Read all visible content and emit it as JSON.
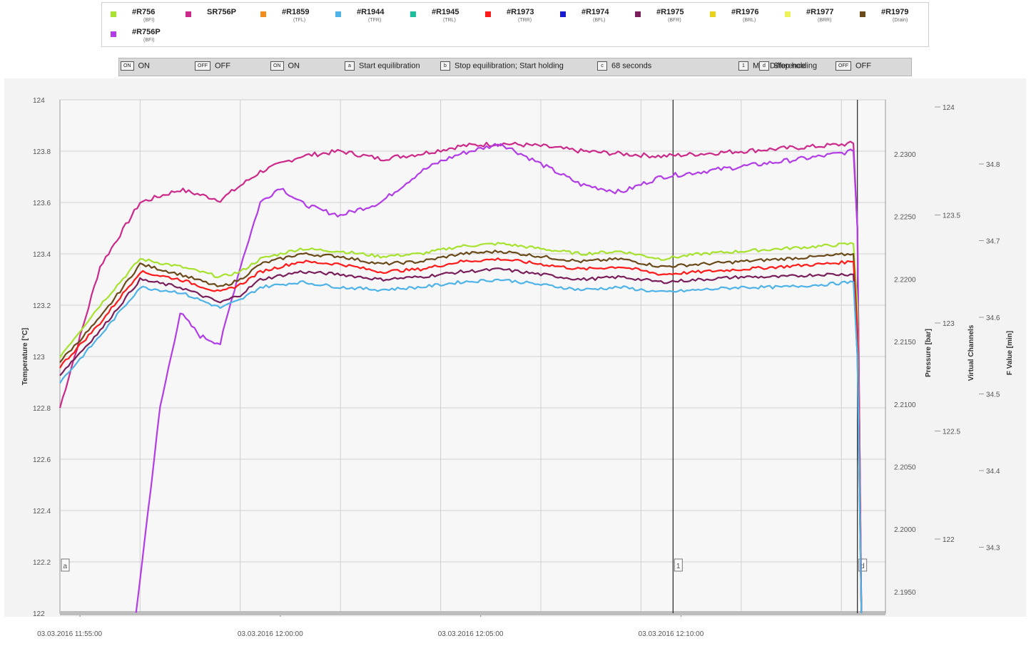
{
  "legend": [
    {
      "name": "#R756",
      "sub": "(BFI)",
      "color": "#a6e22e"
    },
    {
      "name": "SR756P",
      "sub": "",
      "color": "#cc2a8a"
    },
    {
      "name": "#R1859",
      "sub": "(TFL)",
      "color": "#f28c1c"
    },
    {
      "name": "#R1944",
      "sub": "(TFR)",
      "color": "#4fb3e8"
    },
    {
      "name": "#R1945",
      "sub": "(TRL)",
      "color": "#1bbf9a"
    },
    {
      "name": "#R1973",
      "sub": "(TRR)",
      "color": "#ff1a1a"
    },
    {
      "name": "#R1974",
      "sub": "(BFL)",
      "color": "#1a1ad6"
    },
    {
      "name": "#R1975",
      "sub": "(BFR)",
      "color": "#7a1f5c"
    },
    {
      "name": "#R1976",
      "sub": "(BRL)",
      "color": "#e8d21a"
    },
    {
      "name": "#R1977",
      "sub": "(BRR)",
      "color": "#eef25a"
    },
    {
      "name": "#R1979",
      "sub": "(Drain)",
      "color": "#6b4a1a"
    },
    {
      "name": "#R756P",
      "sub": "(BFI)",
      "color": "#b23ce6"
    }
  ],
  "status_bar": [
    {
      "icon": "ON",
      "label": "ON"
    },
    {
      "icon": "OFF",
      "label": "OFF"
    },
    {
      "icon": "ON",
      "label": "ON"
    },
    {
      "icon": "a",
      "label": "Start equilibration"
    },
    {
      "icon": "b",
      "label": "Stop equilibration; Start holding"
    },
    {
      "icon": "c",
      "label": "68 seconds"
    },
    {
      "icon": "1",
      "label": "Max Difference"
    },
    {
      "icon": "d",
      "label": "Stop holding"
    },
    {
      "icon": "OFF",
      "label": "OFF"
    }
  ],
  "chart_data": {
    "type": "line",
    "x_tick_labels": [
      "03.03.2016 11:55:00",
      "03.03.2016 12:00:00",
      "03.03.2016 12:05:00",
      "03.03.2016 12:10:00"
    ],
    "x_range_minutes": [
      -2.0,
      18.6
    ],
    "left_axis": {
      "label": "Temperature [°C]",
      "range": [
        122,
        124
      ],
      "ticks": [
        "124",
        "123.8",
        "123.6",
        "123.4",
        "123.2",
        "123",
        "122.8",
        "122.6",
        "122.4",
        "122.2",
        "122"
      ]
    },
    "pressure_axis": {
      "label": "Pressure [bar]",
      "ticks": [
        "2.2300",
        "2.2250",
        "2.2200",
        "2.2150",
        "2.2100",
        "2.2050",
        "2.2000",
        "2.1950"
      ]
    },
    "virtual_axis": {
      "label": "Virtual Channels",
      "ticks": [
        "124",
        "123.5",
        "123",
        "122.5",
        "122"
      ]
    },
    "fvalue_axis": {
      "label": "F Value [min]",
      "ticks": [
        "34.8",
        "34.7",
        "34.6",
        "34.5",
        "34.4",
        "34.3"
      ]
    },
    "markers": [
      {
        "label": "a",
        "x_minute": -2.0
      },
      {
        "label": "1",
        "x_minute": 13.3
      },
      {
        "label": "d",
        "x_minute": 17.9
      }
    ],
    "series": [
      {
        "name": "SR756P",
        "color": "#cc2a8a",
        "x": [
          -2,
          -1,
          0,
          1,
          2,
          3,
          4,
          5,
          6,
          7,
          8,
          9,
          10,
          11,
          12,
          13,
          14,
          15,
          16,
          17,
          17.8,
          17.9,
          18.0
        ],
        "y": [
          122.8,
          123.35,
          123.6,
          123.65,
          123.61,
          123.72,
          123.78,
          123.8,
          123.77,
          123.79,
          123.82,
          123.83,
          123.82,
          123.8,
          123.79,
          123.78,
          123.79,
          123.8,
          123.81,
          123.82,
          123.83,
          123.5,
          122.0
        ]
      },
      {
        "name": "#R756P",
        "color": "#b23ce6",
        "x": [
          -0.1,
          0.5,
          1,
          1.5,
          2,
          2.5,
          3,
          3.5,
          4,
          4.5,
          5,
          6,
          7,
          7.5,
          8,
          9,
          10,
          11,
          12,
          13,
          14,
          15,
          16,
          17,
          17.8,
          17.9,
          18.0
        ],
        "y": [
          122.0,
          122.8,
          123.17,
          123.08,
          123.05,
          123.35,
          123.6,
          123.66,
          123.6,
          123.57,
          123.55,
          123.6,
          123.72,
          123.76,
          123.79,
          123.83,
          123.75,
          123.67,
          123.64,
          123.7,
          123.72,
          123.74,
          123.76,
          123.78,
          123.8,
          123.5,
          122.0
        ]
      },
      {
        "name": "#R756",
        "color": "#a6e22e",
        "x": [
          -2,
          -1,
          0,
          1,
          2,
          2.5,
          3,
          4,
          5,
          6,
          7,
          8,
          9,
          10,
          11,
          12,
          13,
          14,
          15,
          16,
          17,
          17.8,
          17.9,
          18.0
        ],
        "y": [
          123.0,
          123.2,
          123.38,
          123.35,
          123.31,
          123.33,
          123.38,
          123.42,
          123.41,
          123.39,
          123.4,
          123.43,
          123.44,
          123.42,
          123.4,
          123.41,
          123.38,
          123.4,
          123.41,
          123.42,
          123.43,
          123.44,
          123.2,
          122.0
        ]
      },
      {
        "name": "#R1979",
        "color": "#6b4a1a",
        "x": [
          -2,
          -1,
          0,
          1,
          2,
          2.5,
          3,
          4,
          5,
          6,
          7,
          8,
          9,
          10,
          11,
          12,
          13,
          14,
          15,
          16,
          17,
          17.8,
          17.9,
          18.0
        ],
        "y": [
          122.98,
          123.15,
          123.36,
          123.32,
          123.27,
          123.3,
          123.36,
          123.4,
          123.39,
          123.36,
          123.37,
          123.4,
          123.41,
          123.39,
          123.37,
          123.38,
          123.35,
          123.36,
          123.37,
          123.38,
          123.39,
          123.4,
          123.1,
          122.0
        ]
      },
      {
        "name": "#R1973",
        "color": "#ff1a1a",
        "x": [
          -2,
          -1,
          0,
          1,
          2,
          2.5,
          3,
          4,
          5,
          6,
          7,
          8,
          9,
          10,
          11,
          12,
          13,
          14,
          15,
          16,
          17,
          17.8,
          17.9,
          18.0
        ],
        "y": [
          122.96,
          123.13,
          123.33,
          123.3,
          123.25,
          123.28,
          123.33,
          123.37,
          123.36,
          123.33,
          123.34,
          123.37,
          123.38,
          123.36,
          123.34,
          123.35,
          123.32,
          123.33,
          123.34,
          123.35,
          123.36,
          123.37,
          123.1,
          122.0
        ]
      },
      {
        "name": "#R1975",
        "color": "#7a1f5c",
        "x": [
          -2,
          -1,
          0,
          1,
          2,
          2.5,
          3,
          4,
          5,
          6,
          7,
          8,
          9,
          10,
          11,
          12,
          13,
          14,
          15,
          16,
          17,
          17.8,
          17.9,
          18.0
        ],
        "y": [
          122.93,
          123.1,
          123.3,
          123.27,
          123.21,
          123.24,
          123.3,
          123.33,
          123.32,
          123.3,
          123.31,
          123.33,
          123.34,
          123.32,
          123.3,
          123.31,
          123.29,
          123.3,
          123.31,
          123.31,
          123.32,
          123.32,
          123.0,
          122.0
        ]
      },
      {
        "name": "#R1944",
        "color": "#4fb3e8",
        "x": [
          -2,
          -1,
          0,
          1,
          2,
          2.5,
          3,
          4,
          5,
          6,
          7,
          8,
          9,
          10,
          11,
          12,
          13,
          14,
          15,
          16,
          17,
          17.8,
          17.9,
          18.0
        ],
        "y": [
          122.9,
          123.08,
          123.27,
          123.25,
          123.19,
          123.22,
          123.27,
          123.29,
          123.27,
          123.26,
          123.27,
          123.29,
          123.3,
          123.28,
          123.26,
          123.27,
          123.25,
          123.26,
          123.27,
          123.27,
          123.28,
          123.29,
          123.0,
          122.0
        ]
      }
    ]
  }
}
